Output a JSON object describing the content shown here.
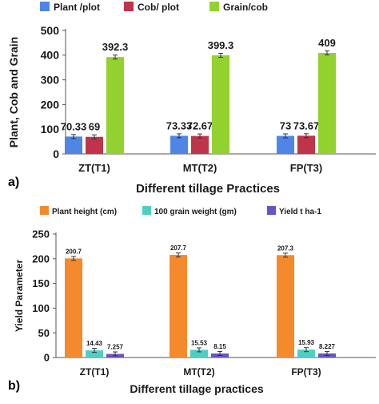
{
  "chart_data": [
    {
      "type": "bar",
      "panel_label": "a)",
      "categories": [
        "ZT(T1)",
        "MT(T2)",
        "FP(T3)"
      ],
      "series": [
        {
          "name": "Plant /plot",
          "color": "#4f86e6",
          "values": [
            70.33,
            73.33,
            73
          ],
          "labels": [
            "70.33",
            "73.33",
            "73"
          ]
        },
        {
          "name": "Cob/ plot",
          "color": "#c0344b",
          "values": [
            69,
            72.67,
            73.67
          ],
          "labels": [
            "69",
            "72.67",
            "73.67"
          ]
        },
        {
          "name": "Grain/cob",
          "color": "#92d12e",
          "values": [
            392.3,
            399.3,
            409
          ],
          "labels": [
            "392.3",
            "399.3",
            "409"
          ]
        }
      ],
      "ylabel": "Plant, Cob and Grain",
      "xlabel": "Different tillage Practices",
      "ylim": [
        0,
        500
      ],
      "yticks": [
        0,
        100,
        200,
        300,
        400,
        500
      ],
      "grid": false,
      "legend": "top"
    },
    {
      "type": "bar",
      "panel_label": "b)",
      "categories": [
        "ZT(T1)",
        "MT(T2)",
        "FP(T3)"
      ],
      "series": [
        {
          "name": "Plant height (cm)",
          "color": "#f48a2c",
          "values": [
            200.7,
            207.7,
            207.3
          ],
          "labels": [
            "200.7",
            "207.7",
            "207.3"
          ]
        },
        {
          "name": "100 grain weight (gm)",
          "color": "#4dcfc4",
          "values": [
            14.43,
            15.53,
            15.93
          ],
          "labels": [
            "14.43",
            "15.53",
            "15.93"
          ]
        },
        {
          "name": "Yield t ha-1",
          "color": "#6655c6",
          "values": [
            7.257,
            8.15,
            8.227
          ],
          "labels": [
            "7.257",
            "8.15",
            "8.227"
          ]
        }
      ],
      "ylabel": "Yield Parameter",
      "xlabel": "Different tillage practices",
      "ylim": [
        0,
        250
      ],
      "yticks": [
        0,
        50,
        100,
        150,
        200,
        250
      ],
      "grid": false,
      "legend": "top"
    }
  ]
}
